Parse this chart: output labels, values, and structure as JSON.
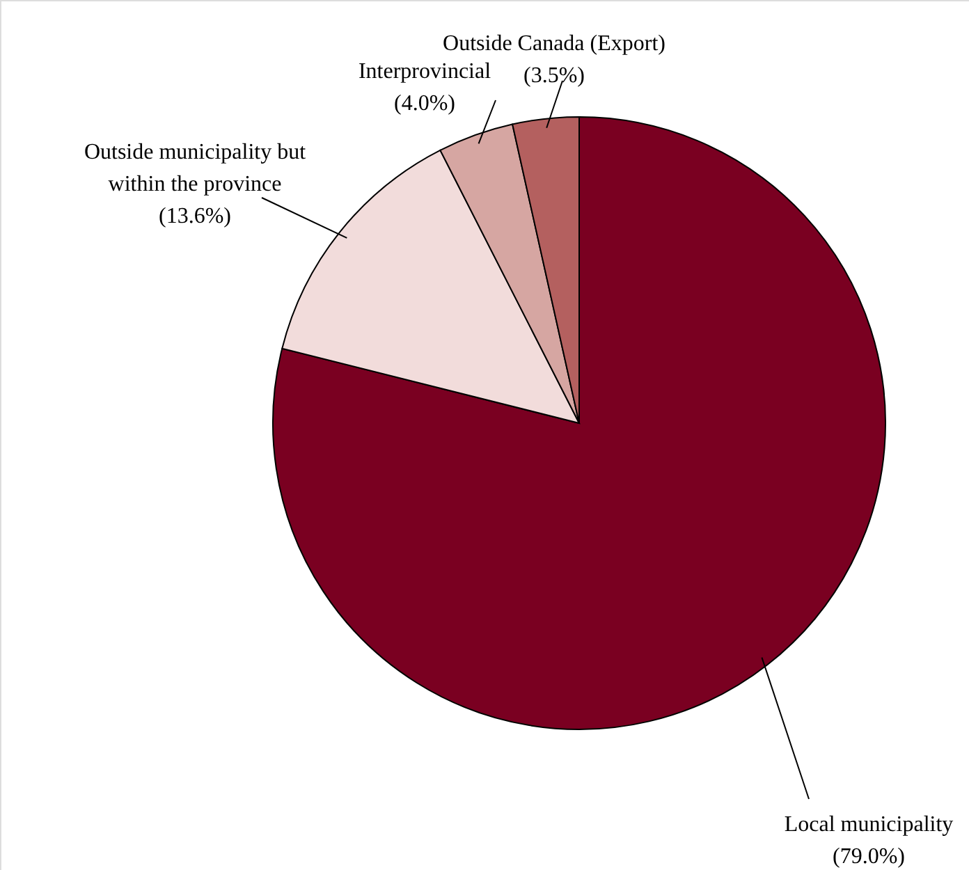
{
  "chart_data": {
    "type": "pie",
    "categories": [
      "Local municipality",
      "Outside municipality but\nwithin the province",
      "Interprovincial",
      "Outside Canada (Export)"
    ],
    "values": [
      79.0,
      13.6,
      4.0,
      3.5
    ],
    "colors": [
      "#7a0021",
      "#f2dcdb",
      "#d6a6a2",
      "#b4605f"
    ],
    "value_labels": [
      "(79.0%)",
      "(13.6%)",
      "(4.0%)",
      "(3.5%)"
    ]
  }
}
